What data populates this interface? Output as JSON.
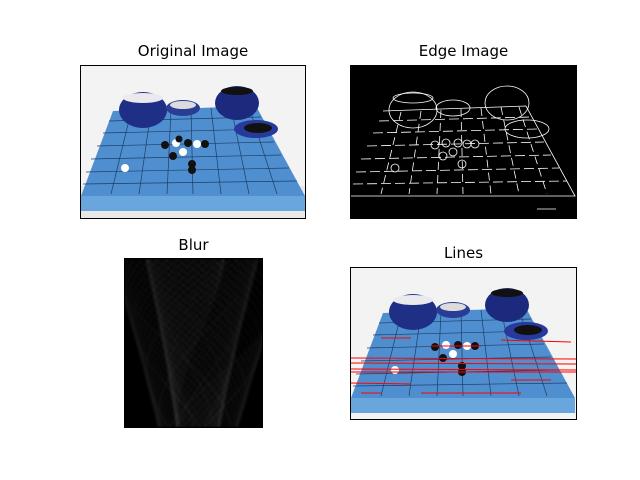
{
  "figure": {
    "panels": [
      {
        "id": "original",
        "title": "Original Image"
      },
      {
        "id": "edge",
        "title": "Edge Image"
      },
      {
        "id": "blur",
        "title": "Blur"
      },
      {
        "id": "lines",
        "title": "Lines"
      }
    ]
  },
  "colors": {
    "board": "#4f8fd0",
    "board_light": "#6aa6de",
    "bowl": "#1f2f86",
    "edge_bg": "#000000",
    "line_overlay": "#ff0000"
  }
}
